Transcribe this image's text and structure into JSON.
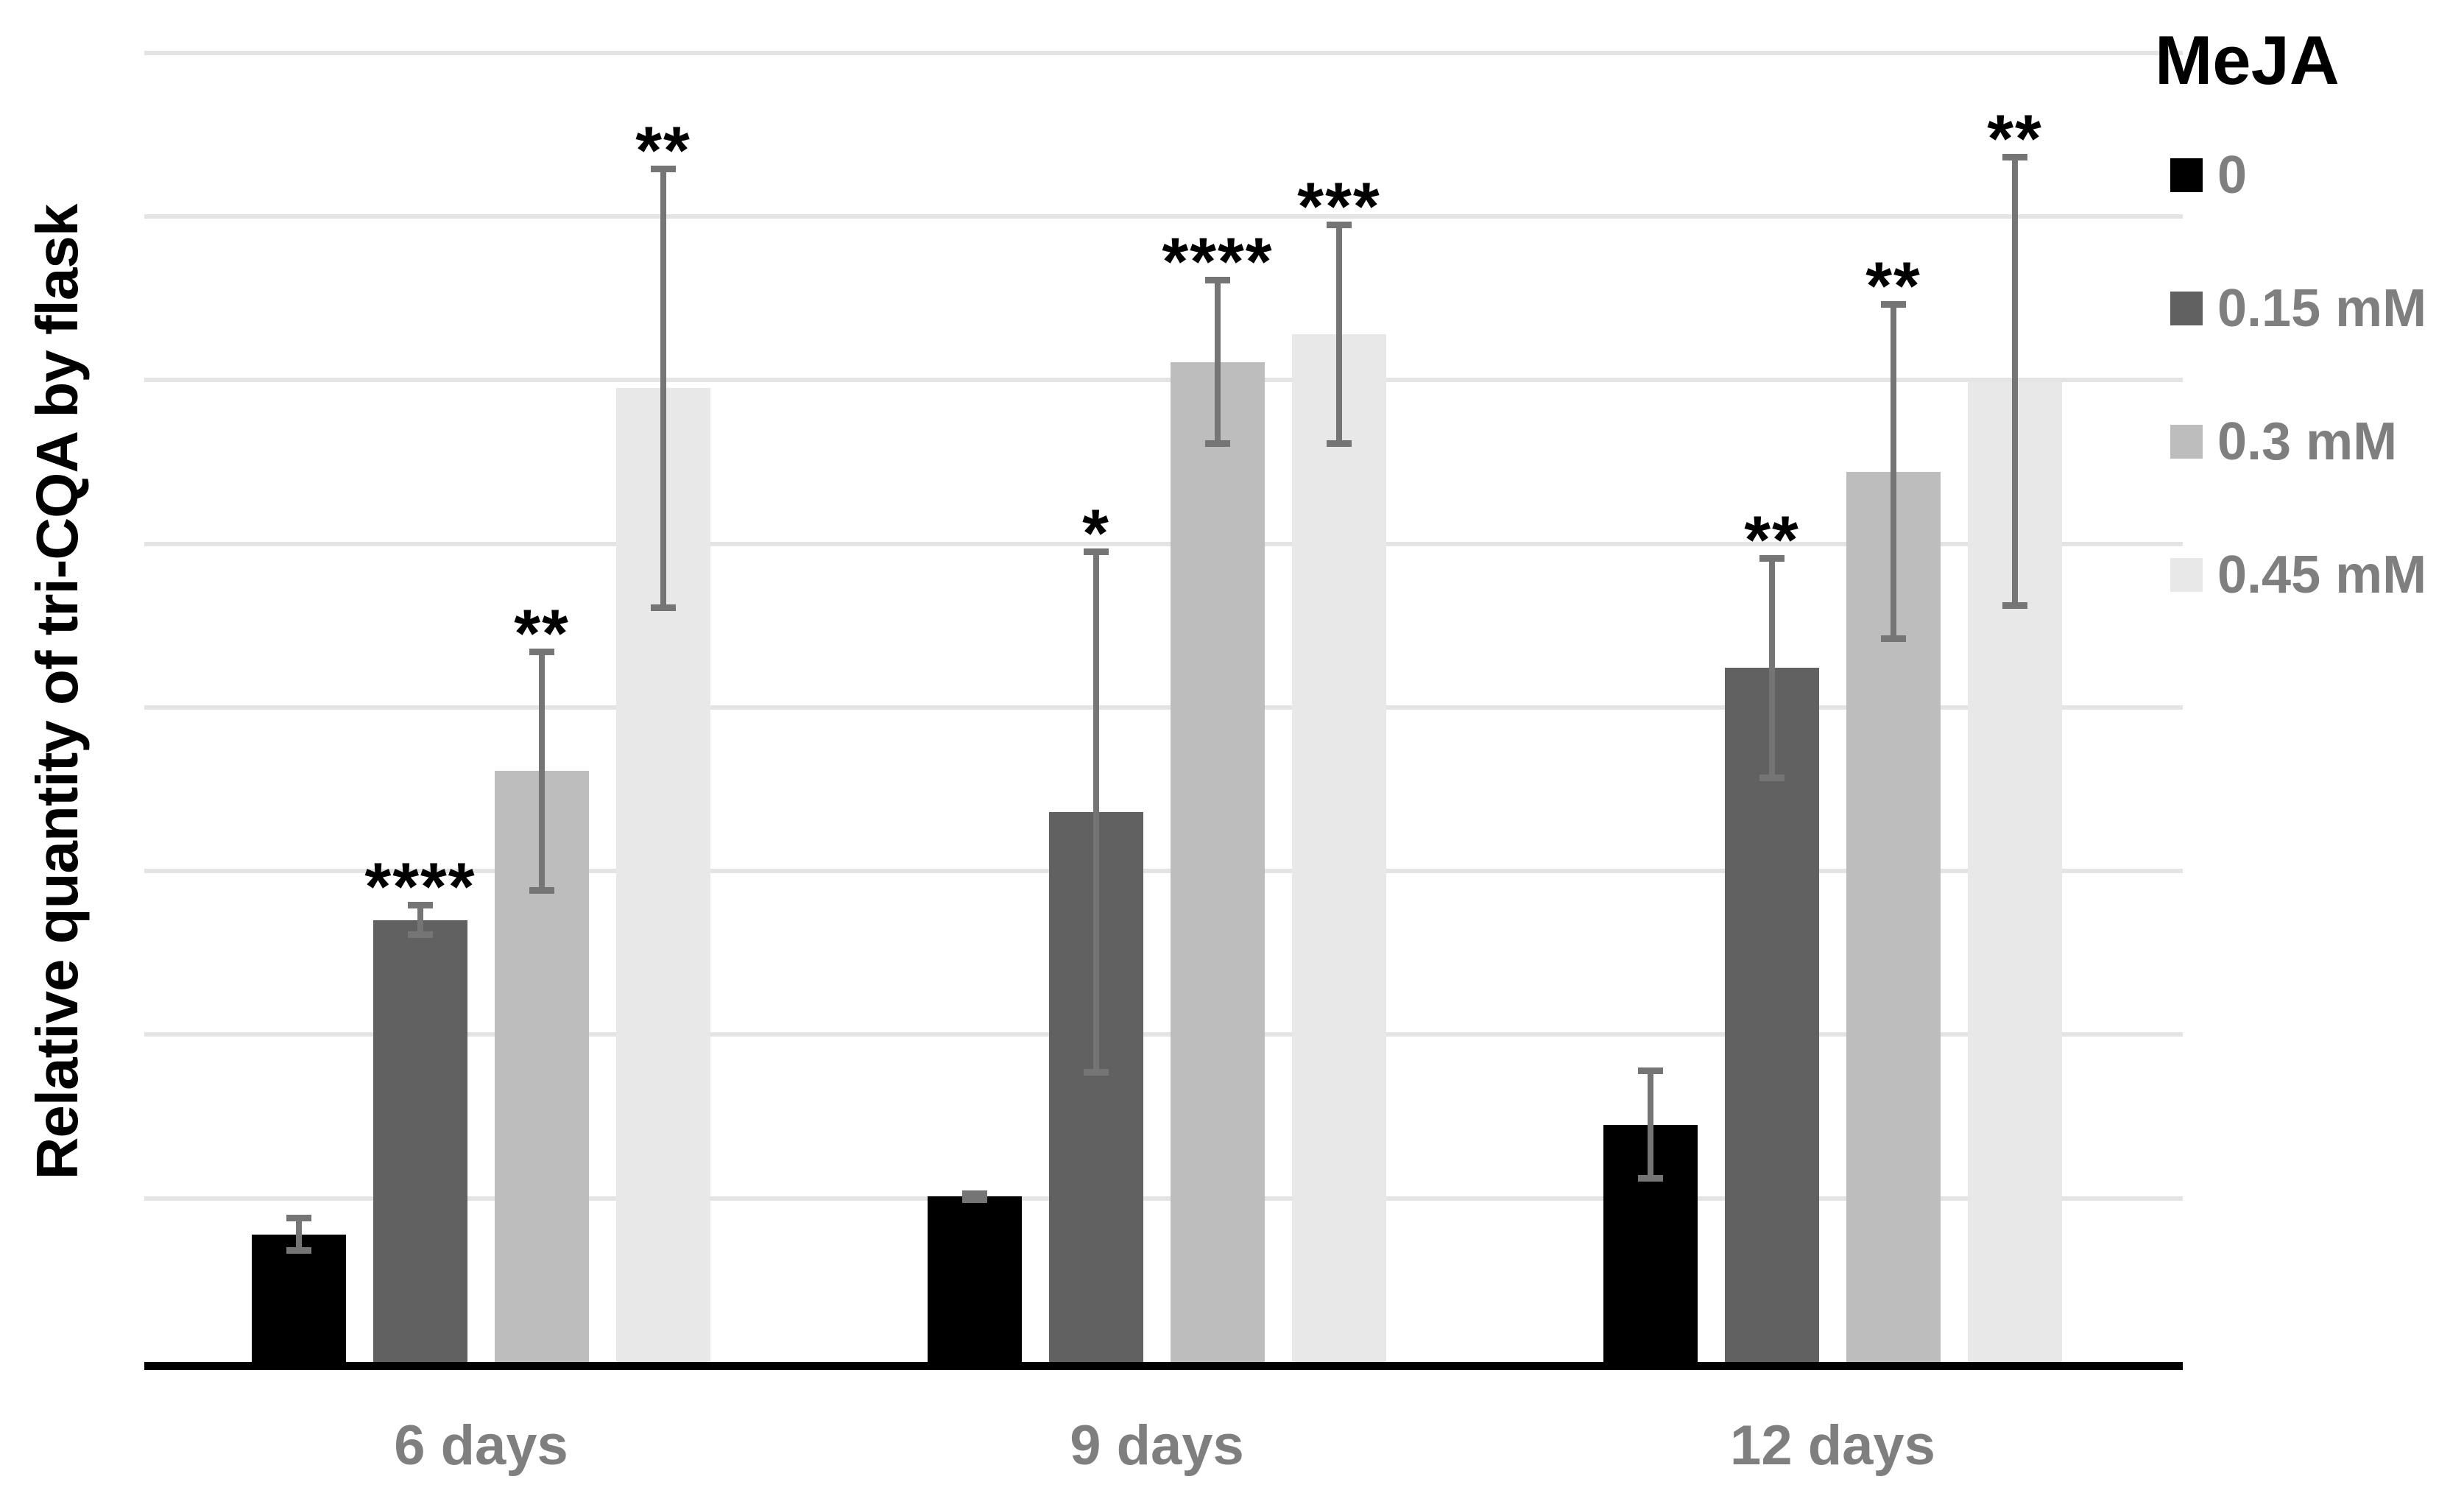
{
  "chart_data": {
    "type": "bar",
    "title": "",
    "ylabel": "Relative quantity of tri-CQA by flask",
    "xlabel": "",
    "categories": [
      "6 days",
      "9 days",
      "12 days"
    ],
    "legend_title": "MeJA",
    "legend_position": "right",
    "grid": true,
    "y_axis_tick_labels_visible": false,
    "ylim": [
      0,
      8.3
    ],
    "gridline_interval": 1,
    "series": [
      {
        "name": "0",
        "color": "#000000",
        "values": [
          0.78,
          1.01,
          1.45
        ],
        "errors": [
          0.12,
          0.04,
          0.35
        ],
        "significance": [
          "",
          "",
          ""
        ]
      },
      {
        "name": "0.15 mM",
        "color": "#616161",
        "values": [
          2.7,
          3.36,
          4.24
        ],
        "errors": [
          0.11,
          1.61,
          0.69
        ],
        "significance": [
          "****",
          "*",
          "**"
        ]
      },
      {
        "name": "0.3 mM",
        "color": "#bdbdbd",
        "values": [
          3.61,
          6.11,
          5.44
        ],
        "errors": [
          0.75,
          0.52,
          1.04
        ],
        "significance": [
          "**",
          "****",
          "**"
        ]
      },
      {
        "name": "0.45 mM",
        "color": "#e8e8e8",
        "values": [
          5.95,
          6.28,
          5.99
        ],
        "errors": [
          1.36,
          0.69,
          1.39
        ],
        "significance": [
          "**",
          "***",
          "**"
        ]
      }
    ],
    "error_bar_color": "#757575",
    "gridline_color": "#e4e4e4",
    "axis_line_color": "#000000",
    "category_label_color": "#7f7f7f",
    "legend_label_color": "#7f7f7f",
    "significance_color": "#000000"
  }
}
